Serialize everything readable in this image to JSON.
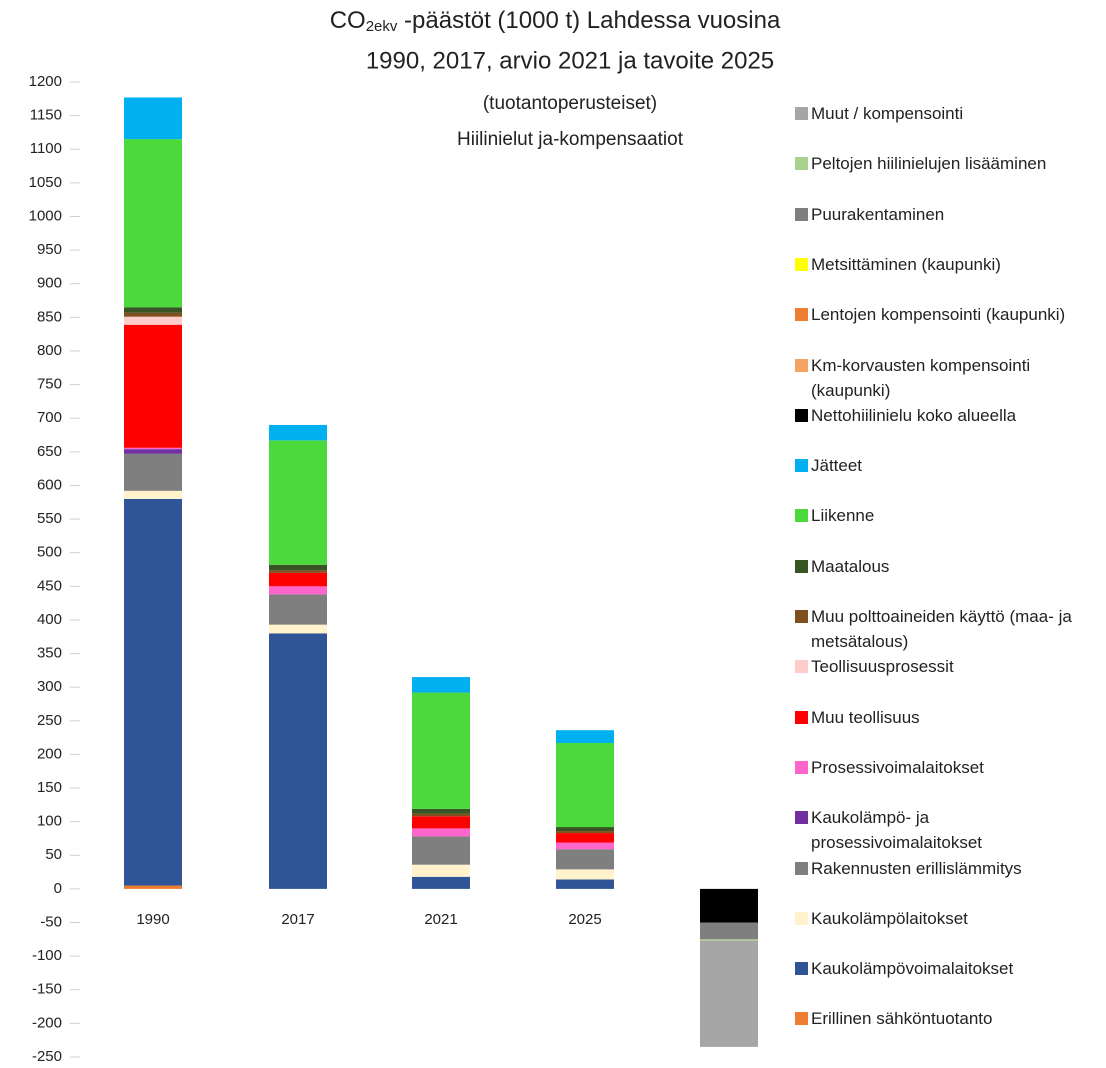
{
  "chart_data": {
    "type": "stacked_bar",
    "title": [
      "CO",
      "2ekv",
      " -päästöt (1000 t) Lahdessa vuosina",
      "1990, 2017, arvio 2021 ja tavoite 2025"
    ],
    "subtitle": [
      "(tuotantoperusteiset)",
      "Hiilinielut ja-kompensaatiot"
    ],
    "categories": [
      "1990",
      "2017",
      "2021",
      "2025",
      null
    ],
    "series": [
      {
        "name": "Erillinen sähköntuotanto",
        "color": "#ed7d31",
        "values": [
          5,
          0,
          0,
          0,
          0
        ]
      },
      {
        "name": "Kaukolämpövoimalaitokset",
        "color": "#2f5597",
        "values": [
          575,
          380,
          18,
          14,
          0
        ]
      },
      {
        "name": "Kaukolämpölaitokset",
        "color": "#fff2cc",
        "values": [
          12,
          13,
          18,
          15,
          0
        ]
      },
      {
        "name": "Rakennusten erillislämmitys",
        "color": "#7f7f7f",
        "values": [
          55,
          45,
          42,
          30,
          0
        ]
      },
      {
        "name": "Kaukolämpö- ja prosessivoimalaitokset",
        "color": "#7030a0",
        "values": [
          7,
          0,
          0,
          0,
          0
        ]
      },
      {
        "name": "Prosessivoimalaitokset",
        "color": "#ff66cc",
        "values": [
          2,
          12,
          12,
          10,
          0
        ]
      },
      {
        "name": "Muu teollisuus",
        "color": "#ff0000",
        "values": [
          183,
          20,
          18,
          14,
          0
        ]
      },
      {
        "name": "Teollisuusprosessit",
        "color": "#ffcccc",
        "values": [
          12,
          0,
          0,
          0,
          0
        ]
      },
      {
        "name": "Muu polttoaineiden käyttö (maa- ja metsätalous)",
        "color": "#7f4f1f",
        "values": [
          6,
          4,
          4,
          3,
          0
        ]
      },
      {
        "name": "Maatalous",
        "color": "#375623",
        "values": [
          8,
          8,
          7,
          6,
          0
        ]
      },
      {
        "name": "Liikenne",
        "color": "#4cd93c",
        "values": [
          250,
          185,
          173,
          125,
          0
        ]
      },
      {
        "name": "Jätteet",
        "color": "#00b0f0",
        "values": [
          62,
          23,
          23,
          19,
          0
        ]
      },
      {
        "name": "Nettohiilinielu koko alueella",
        "color": "#000000",
        "values": [
          0,
          0,
          0,
          0,
          -50
        ]
      },
      {
        "name": "Km-korvausten kompensointi (kaupunki)",
        "color": "#f4a460",
        "values": [
          0,
          0,
          0,
          0,
          0
        ]
      },
      {
        "name": "Lentojen kompensointi (kaupunki)",
        "color": "#ed7d31",
        "values": [
          0,
          0,
          0,
          0,
          0
        ]
      },
      {
        "name": "Metsittäminen (kaupunki)",
        "color": "#ffff00",
        "values": [
          0,
          0,
          0,
          0,
          0
        ]
      },
      {
        "name": "Puurakentaminen",
        "color": "#7f7f7f",
        "values": [
          0,
          0,
          0,
          0,
          -25
        ]
      },
      {
        "name": "Peltojen hiilinielujen lisääminen",
        "color": "#a9d18e",
        "values": [
          0,
          0,
          0,
          0,
          -2
        ]
      },
      {
        "name": "Muut / kompensointi",
        "color": "#a6a6a6",
        "values": [
          0,
          0,
          0,
          0,
          -158
        ]
      }
    ],
    "ylim": [
      -250,
      1200
    ],
    "yticks": [
      1200,
      1150,
      1100,
      1050,
      1000,
      950,
      900,
      850,
      800,
      750,
      700,
      650,
      600,
      550,
      500,
      450,
      400,
      350,
      300,
      250,
      200,
      150,
      100,
      50,
      0,
      -50,
      -100,
      -150,
      -200,
      -250
    ],
    "grid": false
  }
}
